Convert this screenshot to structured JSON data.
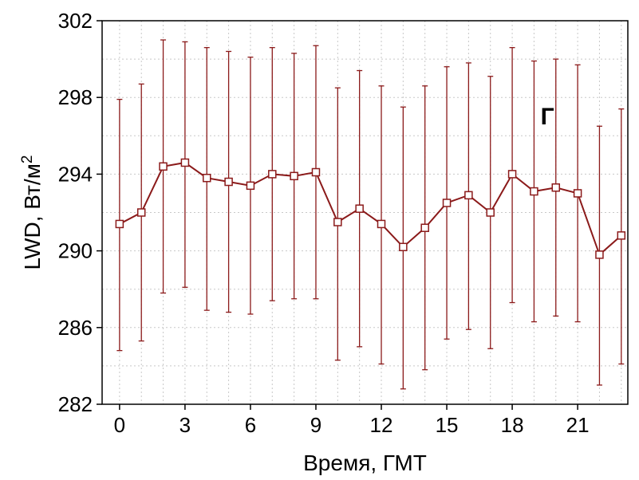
{
  "chart_data": {
    "type": "line",
    "panel_label": "Г",
    "xlabel": "Время, ГМТ",
    "ylabel": "LWD, Вт/м",
    "ylabel_sup": "2",
    "xlim": [
      -0.8,
      23.3
    ],
    "ylim": [
      282,
      302
    ],
    "xticks": [
      0,
      3,
      6,
      9,
      12,
      15,
      18,
      21
    ],
    "yticks": [
      282,
      286,
      290,
      294,
      298,
      302
    ],
    "grid": true,
    "colors": {
      "series": "#8b1a1a",
      "grid": "#c8c8c8",
      "marker_fill": "#ffffff"
    },
    "series": [
      {
        "x": [
          0,
          1,
          2,
          3,
          4,
          5,
          6,
          7,
          8,
          9,
          10,
          11,
          12,
          13,
          14,
          15,
          16,
          17,
          18,
          19,
          20,
          21,
          22,
          23
        ],
        "y": [
          291.4,
          292.0,
          294.4,
          294.6,
          293.8,
          293.6,
          293.4,
          294.0,
          293.9,
          294.1,
          291.5,
          292.2,
          291.4,
          290.2,
          291.2,
          292.5,
          292.9,
          292.0,
          294.0,
          293.1,
          293.3,
          293.0,
          289.8,
          290.8
        ],
        "err_high": [
          297.9,
          298.7,
          301.0,
          300.9,
          300.6,
          300.4,
          300.1,
          300.6,
          300.3,
          300.7,
          298.5,
          299.4,
          298.6,
          297.5,
          298.6,
          299.6,
          299.8,
          299.1,
          300.6,
          299.9,
          300.0,
          299.7,
          296.5,
          297.4
        ],
        "err_low": [
          284.8,
          285.3,
          287.8,
          288.1,
          286.9,
          286.8,
          286.7,
          287.4,
          287.5,
          287.5,
          284.3,
          285.0,
          284.1,
          282.8,
          283.8,
          285.4,
          285.9,
          284.9,
          287.3,
          286.3,
          286.6,
          286.3,
          283.0,
          284.1
        ]
      }
    ]
  }
}
